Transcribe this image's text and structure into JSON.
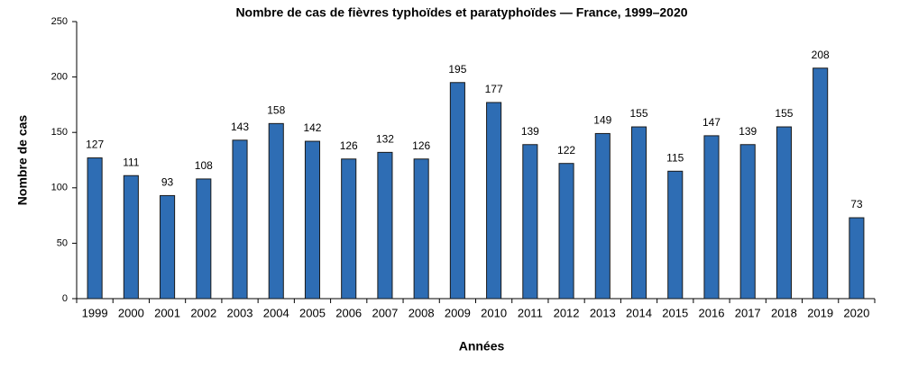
{
  "chart_data": {
    "type": "bar",
    "title": "Nombre de cas de fièvres typhoïdes et paratyphoïdes — France, 1999–2020",
    "x_label": "Années",
    "y_label": "Nombre de cas",
    "categories": [
      "1999",
      "2000",
      "2001",
      "2002",
      "2003",
      "2004",
      "2005",
      "2006",
      "2007",
      "2008",
      "2009",
      "2010",
      "2011",
      "2012",
      "2013",
      "2014",
      "2015",
      "2016",
      "2017",
      "2018",
      "2019",
      "2020"
    ],
    "values": [
      127,
      111,
      93,
      108,
      143,
      158,
      142,
      126,
      132,
      126,
      195,
      177,
      139,
      122,
      149,
      155,
      115,
      147,
      139,
      155,
      208,
      73
    ],
    "color": "#2e6db4",
    "ylim": [
      0,
      250
    ],
    "yticks": [
      0,
      50,
      100,
      150,
      200,
      250
    ],
    "grid": false
  }
}
